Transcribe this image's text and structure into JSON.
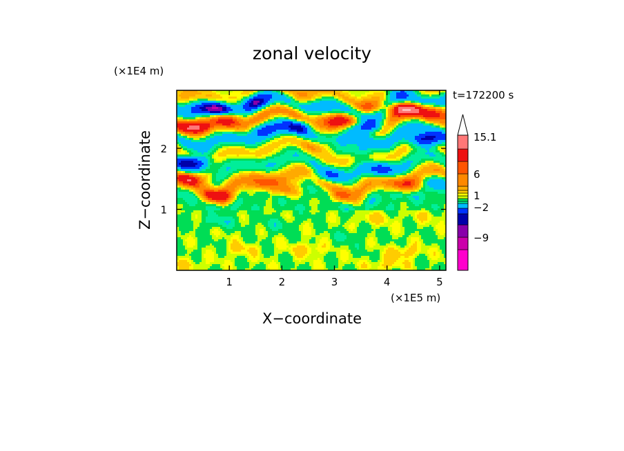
{
  "chart_data": {
    "type": "heatmap",
    "title": "zonal velocity",
    "xlabel": "X−coordinate",
    "ylabel": "Z−coordinate",
    "x_multiplier": "(×1E5 m)",
    "y_multiplier": "(×1E4 m)",
    "annotation": "t=172200 s",
    "xlim": [
      0,
      5.12
    ],
    "ylim": [
      0,
      2.95
    ],
    "xticks": [
      "1",
      "2",
      "3",
      "4",
      "5"
    ],
    "yticks": [
      "1",
      "2"
    ],
    "colorbar": {
      "labels": [
        "15.1",
        "6",
        "1",
        "−2",
        "−9"
      ],
      "extend": "max"
    },
    "bands": [
      {
        "z": 0.2,
        "v": 0.3
      },
      {
        "z": 0.45,
        "v": -0.3
      },
      {
        "z": 0.7,
        "v": 0.2
      },
      {
        "z": 0.95,
        "v": -0.6
      },
      {
        "z": 1.2,
        "v": -1.5
      },
      {
        "z": 1.45,
        "v": 3.0
      },
      {
        "z": 1.7,
        "v": -2.0
      },
      {
        "z": 1.95,
        "v": 1.5
      },
      {
        "z": 2.2,
        "v": -3.0
      },
      {
        "z": 2.45,
        "v": 4.0
      },
      {
        "z": 2.7,
        "v": -4.0
      },
      {
        "z": 2.9,
        "v": 2.5
      }
    ],
    "features": [
      {
        "x": 0.3,
        "z": 1.75,
        "v": -9
      },
      {
        "x": 0.75,
        "z": 2.65,
        "v": -8
      },
      {
        "x": 1.5,
        "z": 2.75,
        "v": -6
      },
      {
        "x": 2.3,
        "z": 2.35,
        "v": -6
      },
      {
        "x": 3.6,
        "z": 2.35,
        "v": -10
      },
      {
        "x": 4.75,
        "z": 2.15,
        "v": -9
      },
      {
        "x": 4.3,
        "z": 2.95,
        "v": -5
      },
      {
        "x": 1.6,
        "z": 2.3,
        "v": -4
      },
      {
        "x": 2.85,
        "z": 1.55,
        "v": -4
      },
      {
        "x": 3.9,
        "z": 1.65,
        "v": -4
      },
      {
        "x": 0.3,
        "z": 1.5,
        "v": 7
      },
      {
        "x": 0.8,
        "z": 1.2,
        "v": 6
      },
      {
        "x": 4.35,
        "z": 2.65,
        "v": 9
      },
      {
        "x": 0.3,
        "z": 2.35,
        "v": 6
      },
      {
        "x": 1.0,
        "z": 2.5,
        "v": 6
      },
      {
        "x": 3.15,
        "z": 2.45,
        "v": 5
      },
      {
        "x": 3.65,
        "z": 2.65,
        "v": 4
      },
      {
        "x": 4.9,
        "z": 2.6,
        "v": 5
      },
      {
        "x": 4.4,
        "z": 1.4,
        "v": 4
      },
      {
        "x": 1.6,
        "z": 1.4,
        "v": 4
      },
      {
        "x": 2.1,
        "z": 1.3,
        "v": 4
      },
      {
        "x": 3.1,
        "z": 1.2,
        "v": 3
      },
      {
        "x": 2.75,
        "z": 2.05,
        "v": 3
      },
      {
        "x": 3.5,
        "z": 1.95,
        "v": -3
      },
      {
        "x": 4.9,
        "z": 1.45,
        "v": -3
      },
      {
        "x": 2.4,
        "z": 2.8,
        "v": 3
      },
      {
        "x": 0.8,
        "z": 0.8,
        "v": -1.5
      },
      {
        "x": 1.9,
        "z": 0.75,
        "v": -1.2
      },
      {
        "x": 2.5,
        "z": 0.35,
        "v": 1.5
      },
      {
        "x": 3.3,
        "z": 0.55,
        "v": -1.0
      },
      {
        "x": 4.3,
        "z": 0.3,
        "v": 1.5
      },
      {
        "x": 4.7,
        "z": 0.9,
        "v": 0.8
      },
      {
        "x": 3.7,
        "z": 0.85,
        "v": 1.5
      },
      {
        "x": 1.2,
        "z": 0.35,
        "v": 1.2
      },
      {
        "x": 0.2,
        "z": 0.1,
        "v": 1.0
      },
      {
        "x": 4.0,
        "z": 0.1,
        "v": 1.2
      }
    ],
    "colors": {
      "levels": [
        "#ff00cc",
        "#cc00aa",
        "#8800aa",
        "#0000aa",
        "#0033ff",
        "#00bbff",
        "#00ee99",
        "#00dd55",
        "#ccff00",
        "#ffff00",
        "#ffcc00",
        "#ffaa00",
        "#ff8800",
        "#ff5500",
        "#ee1111",
        "#ff7777",
        "#ffbbbb"
      ],
      "arrow": "#ffffff"
    }
  }
}
